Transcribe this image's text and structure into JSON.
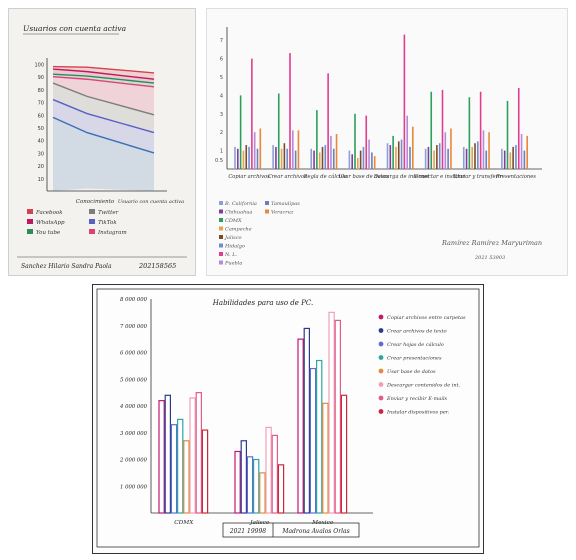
{
  "chart_data": [
    {
      "type": "area",
      "title": "Usuarios con cuenta activa",
      "categories": [
        "Conocimiento",
        "Usuario con cuenta activa"
      ],
      "yticks": [
        "100",
        "90",
        "80",
        "70",
        "60",
        "50",
        "40",
        "30",
        "20",
        "10"
      ],
      "ylim": [
        0,
        100
      ],
      "series": [
        {
          "name": "Facebook",
          "values": [
            98,
            93
          ],
          "color": "#d3424f"
        },
        {
          "name": "WhatsApp",
          "values": [
            96,
            88
          ],
          "color": "#c2185b"
        },
        {
          "name": "You tube",
          "values": [
            92,
            85
          ],
          "color": "#2e8b57"
        },
        {
          "name": "Instagram",
          "values": [
            90,
            82
          ],
          "color": "#e0407a"
        },
        {
          "name": "Twitter",
          "values": [
            85,
            60
          ],
          "color": "#7d7d7d"
        },
        {
          "name": "TikTok",
          "values": [
            72,
            46
          ],
          "color": "#5a5fc7"
        },
        {
          "name": "",
          "values": [
            58,
            30
          ],
          "color": "#3a6fb7"
        }
      ],
      "legend": [
        "Facebook",
        "Twitter",
        "WhatsApp",
        "TikTok",
        "You tube",
        "Instagram"
      ],
      "footer": {
        "author": "Sanchez Hilario Sandra Paola",
        "id": "202158565"
      }
    },
    {
      "type": "bar",
      "yticks": [
        "7",
        "6",
        "5",
        "4",
        "3",
        "2",
        "1",
        "0.5"
      ],
      "ylim": [
        0,
        7.5
      ],
      "categories": [
        "Copiar archivos",
        "Crear archivos",
        "Regla de cálculo",
        "Usar base de datos",
        "Descarga de internet",
        "Conectar e instalar",
        "Enviar y transferir",
        "Presentaciones"
      ],
      "series": [
        {
          "name": "B. California",
          "color": "#8ea0cf",
          "values": [
            1.2,
            1.3,
            1.1,
            1.0,
            1.4,
            1.1,
            1.2,
            1.1
          ]
        },
        {
          "name": "Chihuahua",
          "color": "#7b3fa0",
          "values": [
            1.1,
            1.2,
            1.0,
            0.8,
            1.3,
            1.2,
            1.1,
            1.0
          ]
        },
        {
          "name": "CDMX",
          "color": "#2e9e5b",
          "values": [
            4.0,
            4.1,
            3.2,
            3.0,
            1.8,
            4.2,
            3.9,
            3.7
          ]
        },
        {
          "name": "Campeche",
          "color": "#e6a14a",
          "values": [
            1.0,
            1.1,
            0.9,
            0.6,
            1.2,
            1.0,
            1.2,
            0.9
          ]
        },
        {
          "name": "Jalisco",
          "color": "#7a4b2a",
          "values": [
            1.3,
            1.4,
            1.2,
            1.0,
            1.5,
            1.3,
            1.4,
            1.2
          ]
        },
        {
          "name": "Hidalgo",
          "color": "#6f8fd0",
          "values": [
            1.2,
            1.1,
            1.3,
            1.2,
            1.6,
            1.4,
            1.5,
            1.3
          ]
        },
        {
          "name": "N. L.",
          "color": "#e23d8f",
          "values": [
            6.0,
            6.3,
            5.2,
            2.9,
            7.3,
            4.3,
            4.2,
            4.4
          ]
        },
        {
          "name": "Puebla",
          "color": "#b58ad8",
          "values": [
            2.0,
            2.1,
            1.8,
            1.6,
            2.9,
            2.0,
            2.1,
            1.9
          ]
        },
        {
          "name": "Tamaulipas",
          "color": "#6b7fb8",
          "values": [
            1.1,
            1.0,
            1.1,
            0.9,
            1.2,
            1.1,
            1.0,
            1.0
          ]
        },
        {
          "name": "Veracruz",
          "color": "#e8883a",
          "values": [
            2.2,
            2.1,
            1.9,
            0.7,
            2.3,
            2.2,
            2.0,
            1.8
          ]
        }
      ],
      "footer": {
        "author": "Ramírez Ramírez Maryuriman",
        "id": "2021 53903"
      }
    },
    {
      "type": "bar",
      "title": "Habilidades para uso de PC.",
      "yticks": [
        "8 000 000",
        "7 000 000",
        "6 000 000",
        "5 000 000",
        "4 000 000",
        "3 000 000",
        "2 000 000",
        "1 000 000"
      ],
      "ylim": [
        0,
        8000000
      ],
      "categories": [
        "CDMX",
        "Jalisco",
        "Mexico"
      ],
      "series": [
        {
          "name": "Copiar archivos entre carpetas",
          "color": "#c21872",
          "values": [
            4200000,
            2300000,
            6500000
          ]
        },
        {
          "name": "Crear archivos de texto",
          "color": "#2b3a8c",
          "values": [
            4400000,
            2700000,
            6900000
          ]
        },
        {
          "name": "Crear hojas de cálculo",
          "color": "#5a6fd0",
          "values": [
            3300000,
            2100000,
            5400000
          ]
        },
        {
          "name": "Crear presentaciones",
          "color": "#2aa6a0",
          "values": [
            3500000,
            2000000,
            5700000
          ]
        },
        {
          "name": "Usar base de datos",
          "color": "#e58a3a",
          "values": [
            2700000,
            1500000,
            4100000
          ]
        },
        {
          "name": "Descargar contenidos de int.",
          "color": "#f0a0b4",
          "values": [
            4300000,
            3200000,
            7500000
          ]
        },
        {
          "name": "Enviar y recibir E-mails",
          "color": "#e25a8e",
          "values": [
            4500000,
            2900000,
            7200000
          ]
        },
        {
          "name": "Instalar dispositivos per.",
          "color": "#c8283a",
          "values": [
            3100000,
            1800000,
            4400000
          ]
        }
      ],
      "footer": {
        "id": "2021 19998",
        "author": "Madrona Avalos Orlas"
      }
    }
  ]
}
